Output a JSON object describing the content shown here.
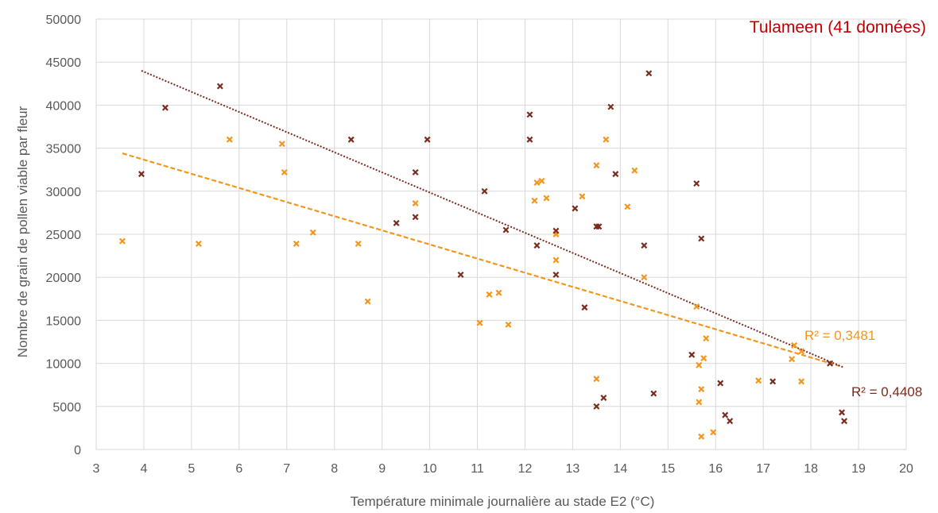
{
  "chart_data": {
    "type": "scatter",
    "title": "Tulameen (41 données)",
    "xlabel": "Température minimale journalière au stade E2 (°C)",
    "ylabel": "Nombre de grain de pollen viable par fleur",
    "xlim": [
      3,
      20
    ],
    "ylim": [
      0,
      50000
    ],
    "x_ticks": [
      "3",
      "4",
      "5",
      "6",
      "7",
      "8",
      "9",
      "10",
      "11",
      "12",
      "13",
      "14",
      "15",
      "16",
      "17",
      "18",
      "19",
      "20"
    ],
    "y_ticks": [
      "0",
      "5000",
      "10000",
      "15000",
      "20000",
      "25000",
      "30000",
      "35000",
      "40000",
      "45000",
      "50000"
    ],
    "grid": true,
    "colors": {
      "orange": "#f4951c",
      "brown": "#7b2c1e",
      "title": "#c00000"
    },
    "series": [
      {
        "color": "#f4951c",
        "marker": "x",
        "points": [
          [
            3.55,
            24200
          ],
          [
            5.15,
            23900
          ],
          [
            5.8,
            36000
          ],
          [
            6.9,
            35500
          ],
          [
            6.95,
            32200
          ],
          [
            7.2,
            23900
          ],
          [
            7.55,
            25200
          ],
          [
            8.5,
            23900
          ],
          [
            8.7,
            17200
          ],
          [
            9.7,
            28600
          ],
          [
            11.05,
            14700
          ],
          [
            11.25,
            18000
          ],
          [
            11.45,
            18200
          ],
          [
            11.65,
            14500
          ],
          [
            12.2,
            28900
          ],
          [
            12.25,
            31000
          ],
          [
            12.35,
            31200
          ],
          [
            12.45,
            29200
          ],
          [
            12.65,
            25000
          ],
          [
            12.65,
            22000
          ],
          [
            13.2,
            29400
          ],
          [
            13.5,
            33000
          ],
          [
            13.5,
            8200
          ],
          [
            13.7,
            36000
          ],
          [
            14.15,
            28200
          ],
          [
            14.3,
            32400
          ],
          [
            14.5,
            20000
          ],
          [
            15.6,
            16600
          ],
          [
            15.65,
            9800
          ],
          [
            15.65,
            5500
          ],
          [
            15.7,
            7000
          ],
          [
            15.7,
            1500
          ],
          [
            15.75,
            10600
          ],
          [
            15.8,
            12900
          ],
          [
            15.95,
            2000
          ],
          [
            16.9,
            8000
          ],
          [
            17.6,
            10500
          ],
          [
            17.65,
            12100
          ],
          [
            17.8,
            11400
          ],
          [
            17.8,
            7900
          ]
        ],
        "trendline": {
          "x": [
            3.55,
            18.6
          ],
          "y": [
            34400,
            9700
          ],
          "r2_label": "R² = 0,3481"
        }
      },
      {
        "color": "#7b2c1e",
        "marker": "x",
        "points": [
          [
            3.95,
            32000
          ],
          [
            4.45,
            39700
          ],
          [
            5.6,
            42200
          ],
          [
            8.35,
            36000
          ],
          [
            9.3,
            26300
          ],
          [
            9.7,
            32200
          ],
          [
            9.7,
            27000
          ],
          [
            9.95,
            36000
          ],
          [
            10.65,
            20300
          ],
          [
            11.15,
            30000
          ],
          [
            11.6,
            25500
          ],
          [
            12.1,
            38900
          ],
          [
            12.1,
            36000
          ],
          [
            12.25,
            23700
          ],
          [
            12.65,
            25400
          ],
          [
            12.65,
            20300
          ],
          [
            13.05,
            28000
          ],
          [
            13.25,
            16500
          ],
          [
            13.5,
            25900
          ],
          [
            13.55,
            25900
          ],
          [
            13.5,
            5000
          ],
          [
            13.65,
            6000
          ],
          [
            13.8,
            39800
          ],
          [
            13.9,
            32000
          ],
          [
            14.5,
            23700
          ],
          [
            14.6,
            43700
          ],
          [
            14.7,
            6500
          ],
          [
            15.5,
            11000
          ],
          [
            15.6,
            30900
          ],
          [
            15.7,
            24500
          ],
          [
            16.1,
            7700
          ],
          [
            16.2,
            4000
          ],
          [
            16.3,
            3300
          ],
          [
            17.2,
            7900
          ],
          [
            18.4,
            10000
          ],
          [
            18.65,
            4300
          ],
          [
            18.7,
            3300
          ]
        ],
        "trendline": {
          "x": [
            3.95,
            18.7
          ],
          "y": [
            44000,
            9500
          ],
          "r2_label": "R² = 0,4408"
        }
      }
    ]
  }
}
